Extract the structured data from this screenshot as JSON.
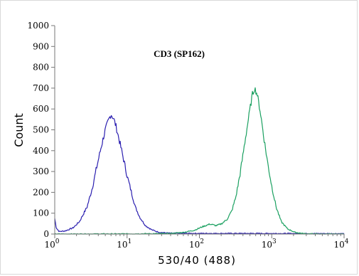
{
  "chart_data": {
    "type": "line",
    "title": "CD3 (SP162)",
    "xlabel": "530/40 (488)",
    "ylabel": "Count",
    "x_scale": "log",
    "xlim": [
      1,
      10000
    ],
    "ylim": [
      0,
      1000
    ],
    "y_ticks": [
      0,
      100,
      200,
      300,
      400,
      500,
      600,
      700,
      800,
      900,
      1000
    ],
    "x_ticks": [
      {
        "base": "10",
        "exp": "0",
        "value": 1
      },
      {
        "base": "10",
        "exp": "1",
        "value": 10
      },
      {
        "base": "10",
        "exp": "2",
        "value": 100
      },
      {
        "base": "10",
        "exp": "3",
        "value": 1000
      },
      {
        "base": "10",
        "exp": "4",
        "value": 10000
      }
    ],
    "grid": false,
    "series": [
      {
        "color": "#2b1fb0",
        "points": [
          [
            1.0,
            75
          ],
          [
            1.05,
            30
          ],
          [
            1.15,
            12
          ],
          [
            1.4,
            15
          ],
          [
            1.8,
            30
          ],
          [
            2.2,
            60
          ],
          [
            2.8,
            130
          ],
          [
            3.3,
            220
          ],
          [
            3.8,
            320
          ],
          [
            4.4,
            420
          ],
          [
            5.0,
            500
          ],
          [
            5.6,
            550
          ],
          [
            6.0,
            575
          ],
          [
            6.5,
            555
          ],
          [
            7.0,
            520
          ],
          [
            7.8,
            450
          ],
          [
            8.8,
            370
          ],
          [
            10,
            280
          ],
          [
            11.5,
            200
          ],
          [
            13,
            130
          ],
          [
            15,
            80
          ],
          [
            18,
            40
          ],
          [
            22,
            20
          ],
          [
            28,
            8
          ],
          [
            40,
            4
          ],
          [
            100,
            3
          ],
          [
            400,
            3
          ],
          [
            10000,
            2
          ]
        ]
      },
      {
        "color": "#1aa060",
        "points": [
          [
            1.0,
            0
          ],
          [
            10,
            1
          ],
          [
            25,
            2
          ],
          [
            40,
            3
          ],
          [
            60,
            8
          ],
          [
            85,
            18
          ],
          [
            110,
            35
          ],
          [
            140,
            48
          ],
          [
            170,
            40
          ],
          [
            200,
            48
          ],
          [
            240,
            70
          ],
          [
            280,
            110
          ],
          [
            320,
            180
          ],
          [
            370,
            300
          ],
          [
            420,
            430
          ],
          [
            480,
            560
          ],
          [
            540,
            670
          ],
          [
            580,
            700
          ],
          [
            630,
            670
          ],
          [
            700,
            580
          ],
          [
            780,
            460
          ],
          [
            880,
            340
          ],
          [
            1000,
            230
          ],
          [
            1150,
            130
          ],
          [
            1350,
            60
          ],
          [
            1650,
            25
          ],
          [
            2100,
            8
          ],
          [
            2800,
            2
          ],
          [
            5000,
            0
          ],
          [
            10000,
            0
          ]
        ]
      }
    ]
  }
}
